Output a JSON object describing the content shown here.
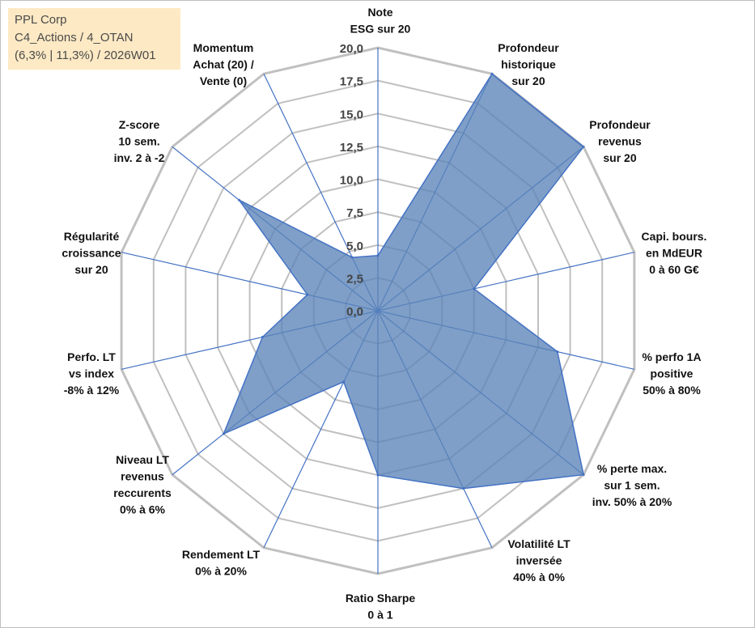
{
  "info": {
    "line1": "PPL Corp",
    "line2": "C4_Actions / 4_OTAN",
    "line3": "(6,3% | 11,3%) / 2026W01"
  },
  "colors": {
    "fill": "#5b84b8",
    "stroke": "#4472c4",
    "grid": "#c0c0c0",
    "info_bg": "#fde9c4"
  },
  "chart_data": {
    "type": "radar",
    "title": "PPL Corp",
    "rmax": 20,
    "ticks": [
      "0,0",
      "2,5",
      "5,0",
      "7,5",
      "10,0",
      "12,5",
      "15,0",
      "17,5",
      "20,0"
    ],
    "axes": [
      {
        "lines": [
          "Note",
          "ESG sur 20"
        ],
        "value": 4.2
      },
      {
        "lines": [
          "Profondeur",
          "historique",
          "sur 20"
        ],
        "value": 20.0
      },
      {
        "lines": [
          "Profondeur",
          "revenus",
          "sur 20"
        ],
        "value": 20.0
      },
      {
        "lines": [
          "Capi. bours.",
          "en MdEUR",
          "0 à 60 G€"
        ],
        "value": 7.5
      },
      {
        "lines": [
          "% perfo 1A",
          "positive",
          "50% à 80%"
        ],
        "value": 14.0
      },
      {
        "lines": [
          "% perte max.",
          "sur 1 sem.",
          "inv. 50% à 20%"
        ],
        "value": 20.0
      },
      {
        "lines": [
          "Volatilité LT",
          "inversée",
          "40% à 0%"
        ],
        "value": 15.0
      },
      {
        "lines": [
          "Ratio Sharpe",
          "0 à 1"
        ],
        "value": 12.5
      },
      {
        "lines": [
          "Rendement LT",
          "0% à 20%"
        ],
        "value": 6.0
      },
      {
        "lines": [
          "Niveau LT",
          "revenus",
          "reccurents",
          "0% à 6%"
        ],
        "value": 15.0
      },
      {
        "lines": [
          "Perfo. LT",
          "vs index",
          "-8% à 12%"
        ],
        "value": 9.0
      },
      {
        "lines": [
          "Régularité",
          "croissance",
          "sur 20"
        ],
        "value": 5.5
      },
      {
        "lines": [
          "Z-score",
          "10 sem.",
          "inv. 2 à -2"
        ],
        "value": 13.5
      },
      {
        "lines": [
          "Momentum",
          "Achat (20) /",
          "Vente (0)"
        ],
        "value": 4.5
      }
    ]
  }
}
